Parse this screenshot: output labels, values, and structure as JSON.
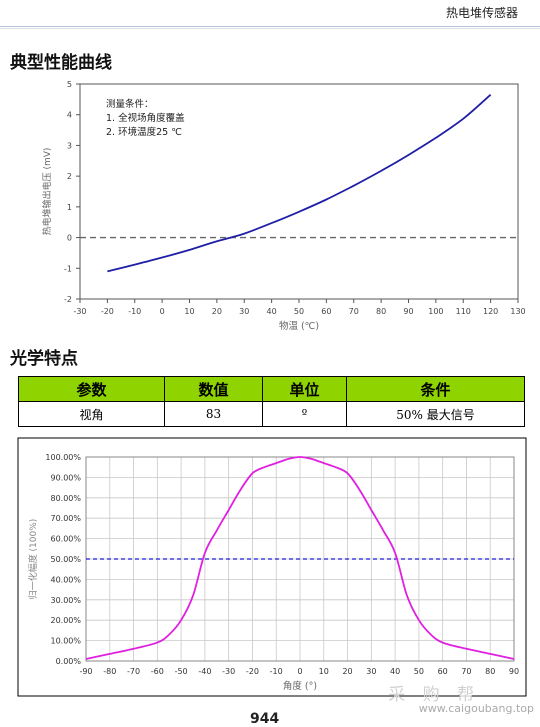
{
  "header": {
    "title": "热电堆传感器"
  },
  "section1": {
    "title": "典型性能曲线"
  },
  "section2": {
    "title": "光学特点"
  },
  "table": {
    "headers": [
      "参数",
      "数值",
      "单位",
      "条件"
    ],
    "row": [
      "视角",
      "83",
      "º",
      "50% 最大信号"
    ]
  },
  "chart_data": [
    {
      "type": "line",
      "xlabel": "物温 (℃)",
      "ylabel": "热电堆输出电压 (mV)",
      "xlim": [
        -30,
        130
      ],
      "ylim": [
        -2,
        5
      ],
      "xticks": [
        -30,
        -20,
        -10,
        0,
        10,
        20,
        30,
        40,
        50,
        60,
        70,
        80,
        90,
        100,
        110,
        120,
        130
      ],
      "yticks": [
        -2,
        -1,
        0,
        1,
        2,
        3,
        4,
        5
      ],
      "annotations": [
        "测量条件：",
        "1. 全视场角度覆盖",
        "2. 环境温度25 ℃"
      ],
      "series": [
        {
          "x": [
            -20,
            -10,
            0,
            10,
            20,
            25,
            30,
            40,
            50,
            60,
            70,
            80,
            90,
            100,
            110,
            120
          ],
          "y": [
            -1.1,
            -0.88,
            -0.65,
            -0.4,
            -0.12,
            0.0,
            0.13,
            0.47,
            0.84,
            1.24,
            1.69,
            2.17,
            2.69,
            3.25,
            3.87,
            4.65
          ]
        }
      ],
      "reference_line": {
        "y": 0,
        "style": "dashed"
      },
      "line_color": "#1f1fa6",
      "grid": false
    },
    {
      "type": "line",
      "xlabel": "角度 (°)",
      "ylabel": "归一化幅度 (100%)",
      "xlim": [
        -90,
        90
      ],
      "ylim": [
        0,
        100
      ],
      "xticks": [
        -90,
        -80,
        -70,
        -60,
        -50,
        -40,
        -30,
        -20,
        -10,
        0,
        10,
        20,
        30,
        40,
        50,
        60,
        70,
        80,
        90
      ],
      "yticks": [
        0,
        10,
        20,
        30,
        40,
        50,
        60,
        70,
        80,
        90,
        100
      ],
      "ytick_labels": [
        "0.00%",
        "10.00%",
        "20.00%",
        "30.00%",
        "40.00%",
        "50.00%",
        "60.00%",
        "70.00%",
        "80.00%",
        "90.00%",
        "100.00%"
      ],
      "series": [
        {
          "x": [
            -90,
            -80,
            -70,
            -60,
            -55,
            -50,
            -45,
            -40,
            -35,
            -30,
            -25,
            -20,
            -15,
            -10,
            -5,
            0,
            5,
            10,
            15,
            20,
            25,
            30,
            35,
            40,
            45,
            50,
            55,
            60,
            70,
            80,
            90
          ],
          "y": [
            1,
            3.5,
            6,
            9,
            13,
            20,
            32,
            53,
            64,
            74,
            84,
            92,
            95,
            97,
            99,
            100,
            99,
            97,
            95,
            92,
            84,
            74,
            64,
            53,
            32,
            20,
            13,
            9,
            6,
            3.5,
            1
          ]
        }
      ],
      "reference_line": {
        "y": 50,
        "style": "dashed"
      },
      "line_color": "#e020e0",
      "ref_color": "#1a1ad0",
      "grid": true
    }
  ],
  "watermark": {
    "main": "采 购 帮",
    "url": "www.caigoubang.top"
  },
  "page_number": "944"
}
